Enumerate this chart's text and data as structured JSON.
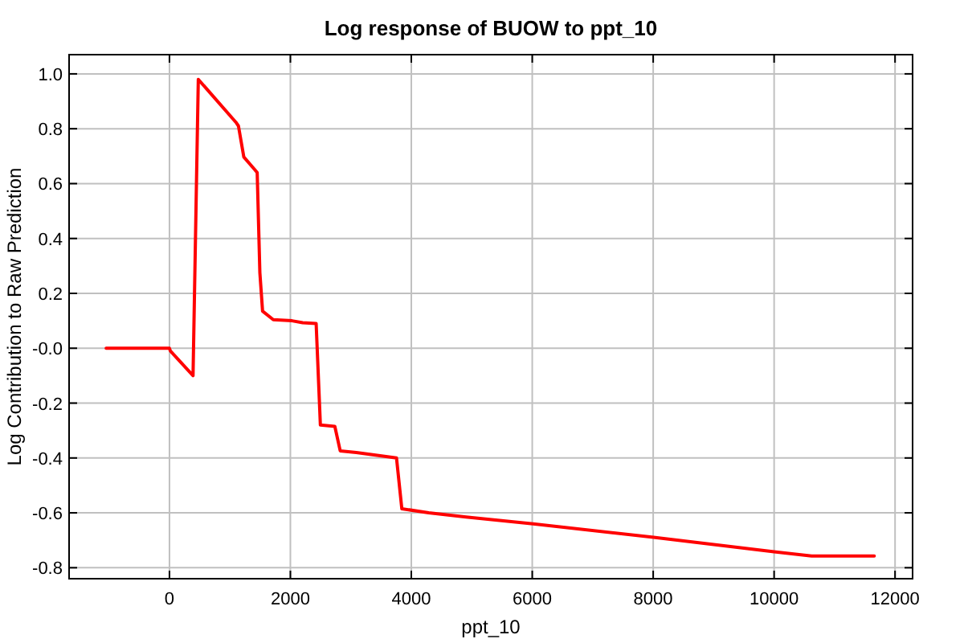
{
  "chart_data": {
    "type": "line",
    "title": "Log response of BUOW to ppt_10",
    "xlabel": "ppt_10",
    "ylabel": "Log Contribution to Raw Prediction",
    "x": [
      -1047,
      0,
      15,
      390,
      477,
      1097,
      1141,
      1230,
      1407,
      1451,
      1495,
      1540,
      1717,
      2027,
      2203,
      2426,
      2496,
      2735,
      2824,
      3090,
      3755,
      3843,
      4287,
      4905,
      6014,
      8007,
      10000,
      10620,
      11656
    ],
    "series": [
      {
        "color": "#ff0000",
        "values": [
          0,
          0,
          -0.01,
          -0.1,
          0.98,
          0.824,
          0.81,
          0.697,
          0.652,
          0.64,
          0.276,
          0.135,
          0.104,
          0.1,
          0.093,
          0.09,
          -0.28,
          -0.285,
          -0.374,
          -0.38,
          -0.4,
          -0.585,
          -0.6,
          -0.615,
          -0.64,
          -0.689,
          -0.742,
          -0.757,
          -0.757
        ]
      }
    ],
    "xlim": [
      -1660,
      12290
    ],
    "ylim": [
      -0.84,
      1.07
    ],
    "xticks": [
      0,
      2000,
      4000,
      6000,
      8000,
      10000,
      12000
    ],
    "yticks": [
      {
        "value": 1,
        "label": "1.0"
      },
      {
        "value": 0.8,
        "label": "0.8"
      },
      {
        "value": 0.6,
        "label": "0.6"
      },
      {
        "value": 0.4,
        "label": "0.4"
      },
      {
        "value": 0.2,
        "label": "0.2"
      },
      {
        "value": 0,
        "label": "-0.0"
      },
      {
        "value": -0.2,
        "label": "-0.2"
      },
      {
        "value": -0.4,
        "label": "-0.4"
      },
      {
        "value": -0.6,
        "label": "-0.6"
      },
      {
        "value": -0.8,
        "label": "-0.8"
      }
    ],
    "grid": true,
    "marker": "none",
    "line_style": "solid"
  }
}
